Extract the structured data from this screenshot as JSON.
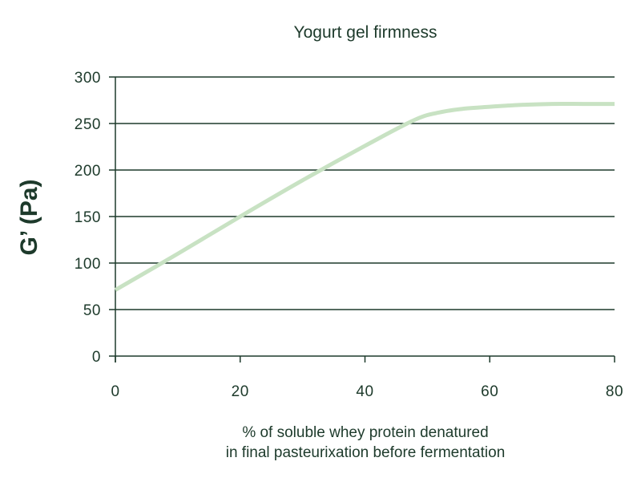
{
  "chart_data": {
    "type": "line",
    "title": "Yogurt gel firmness",
    "xlabel_lines": [
      "% of soluble whey protein denatured",
      "in final pasteurixation before fermentation"
    ],
    "ylabel": "G’ (Pa)",
    "xlim": [
      0,
      80
    ],
    "ylim": [
      0,
      300
    ],
    "x_ticks": [
      0,
      20,
      40,
      60,
      80
    ],
    "y_ticks": [
      0,
      50,
      100,
      150,
      200,
      250,
      300
    ],
    "grid": "horizontal",
    "series": [
      {
        "color": "#c8e2c3",
        "x": [
          0,
          10,
          20,
          30,
          40,
          48,
          52,
          56,
          60,
          65,
          70,
          75,
          80
        ],
        "y": [
          71,
          110,
          150,
          189,
          226,
          254,
          262,
          266,
          268,
          270,
          271,
          271,
          271
        ]
      }
    ]
  },
  "colors": {
    "text": "#1d3a2b",
    "axis": "#1d3a2b",
    "grid": "#1d3a2b",
    "line": "#c8e2c3"
  }
}
